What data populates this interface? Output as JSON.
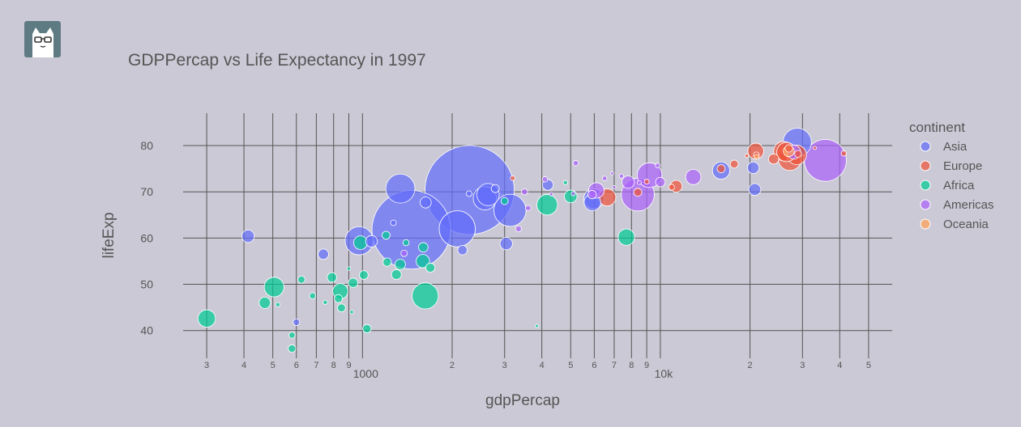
{
  "chart_data": {
    "type": "scatter",
    "title": "GDPPercap vs Life Expectancy in 1997",
    "xlabel": "gdpPercap",
    "ylabel": "lifeExp",
    "x_scale": "log",
    "xlim": [
      250,
      60000
    ],
    "ylim": [
      34,
      87
    ],
    "y_ticks": [
      40,
      50,
      60,
      70,
      80
    ],
    "x_minor_ticks": [
      {
        "value": 300,
        "label": "3"
      },
      {
        "value": 400,
        "label": "4"
      },
      {
        "value": 500,
        "label": "5"
      },
      {
        "value": 600,
        "label": "6"
      },
      {
        "value": 700,
        "label": "7"
      },
      {
        "value": 800,
        "label": "8"
      },
      {
        "value": 900,
        "label": "9"
      },
      {
        "value": 2000,
        "label": "2"
      },
      {
        "value": 3000,
        "label": "3"
      },
      {
        "value": 4000,
        "label": "4"
      },
      {
        "value": 5000,
        "label": "5"
      },
      {
        "value": 6000,
        "label": "6"
      },
      {
        "value": 7000,
        "label": "7"
      },
      {
        "value": 8000,
        "label": "8"
      },
      {
        "value": 9000,
        "label": "9"
      },
      {
        "value": 20000,
        "label": "2"
      },
      {
        "value": 30000,
        "label": "3"
      },
      {
        "value": 40000,
        "label": "4"
      },
      {
        "value": 50000,
        "label": "5"
      }
    ],
    "x_major_ticks": [
      {
        "value": 1000,
        "label": "1000"
      },
      {
        "value": 10000,
        "label": "10k"
      }
    ],
    "legend": {
      "title": "continent",
      "position": "right"
    },
    "bubble_size": "population",
    "grid": true,
    "series": [
      {
        "name": "Asia",
        "color": "#636efa",
        "points": [
          [
            2289,
            70.4,
            1230
          ],
          [
            1459,
            61.8,
            959
          ],
          [
            2080,
            62.0,
            202
          ],
          [
            413,
            60.4,
            24
          ],
          [
            1340,
            70.7,
            131
          ],
          [
            3127,
            66.0,
            160
          ],
          [
            2576,
            68.6,
            84
          ],
          [
            975,
            59.4,
            123
          ],
          [
            2640,
            69.4,
            77
          ],
          [
            1072,
            59.3,
            21
          ],
          [
            5914,
            67.7,
            43
          ],
          [
            3038,
            58.8,
            24
          ],
          [
            5980,
            68.5,
            63
          ],
          [
            2166,
            57.4,
            14
          ],
          [
            739,
            56.5,
            17
          ],
          [
            28800,
            80.7,
            125
          ],
          [
            15990,
            74.6,
            46
          ],
          [
            20750,
            70.5,
            22
          ],
          [
            1630,
            67.7,
            19
          ],
          [
            4190,
            71.5,
            18
          ],
          [
            20500,
            75.2,
            21
          ],
          [
            2790,
            70.7,
            10
          ],
          [
            1270,
            63.3,
            5
          ],
          [
            600,
            41.8,
            7
          ],
          [
            2280,
            69.6,
            5
          ]
        ]
      },
      {
        "name": "Europe",
        "color": "#ef553b",
        "points": [
          [
            27200,
            77.1,
            82
          ],
          [
            26500,
            78.6,
            58
          ],
          [
            25900,
            78.8,
            59
          ],
          [
            20900,
            78.8,
            39
          ],
          [
            17700,
            76.0,
            10
          ],
          [
            28700,
            78.0,
            59
          ],
          [
            24000,
            77.1,
            16
          ],
          [
            29000,
            78.2,
            7.5
          ],
          [
            21000,
            78.0,
            5.1
          ],
          [
            27000,
            79.4,
            8.9
          ],
          [
            6630,
            68.8,
            46
          ],
          [
            11300,
            71.2,
            22
          ],
          [
            9000,
            72.2,
            3.8
          ],
          [
            16000,
            75.0,
            10
          ],
          [
            10900,
            71.0,
            5.4
          ],
          [
            3193,
            72.95,
            3.4
          ],
          [
            19500,
            77.8,
            2.1
          ],
          [
            41300,
            78.3,
            4.4
          ],
          [
            8400,
            69.9,
            10
          ],
          [
            33000,
            79.5,
            0.3
          ]
        ]
      },
      {
        "name": "Africa",
        "color": "#00cc96",
        "points": [
          [
            1624,
            47.5,
            106
          ],
          [
            7689,
            60.2,
            42
          ],
          [
            4169,
            67.2,
            66
          ],
          [
            505,
            49.4,
            60
          ],
          [
            843,
            48.5,
            36
          ],
          [
            985,
            59.0,
            29
          ],
          [
            1595,
            55.0,
            28
          ],
          [
            1339,
            54.3,
            17
          ],
          [
            300,
            42.6,
            47
          ],
          [
            930,
            50.3,
            14
          ],
          [
            5000,
            69.0,
            25
          ],
          [
            1690,
            53.6,
            13
          ],
          [
            790,
            51.5,
            14
          ],
          [
            470,
            46.0,
            20
          ],
          [
            624,
            51.0,
            8
          ],
          [
            1210,
            54.8,
            11
          ],
          [
            1200,
            60.6,
            10
          ],
          [
            580,
            39.0,
            6
          ],
          [
            1035,
            40.4,
            11
          ],
          [
            580,
            36.1,
            9
          ],
          [
            3000,
            68.0,
            8
          ],
          [
            1600,
            58.0,
            14
          ],
          [
            830,
            46.9,
            10
          ],
          [
            1300,
            52.1,
            15
          ],
          [
            4800,
            72.0,
            3
          ],
          [
            680,
            47.5,
            6
          ],
          [
            850,
            44.9,
            10
          ],
          [
            1010,
            52.0,
            12
          ],
          [
            920,
            44.0,
            2
          ],
          [
            900,
            53.4,
            2
          ],
          [
            3850,
            41.0,
            1.5
          ],
          [
            520,
            45.6,
            3
          ],
          [
            750,
            46.1,
            3
          ],
          [
            1400,
            59.0,
            6
          ]
        ]
      },
      {
        "name": "Americas",
        "color": "#ab63fa",
        "points": [
          [
            35800,
            76.8,
            272
          ],
          [
            9200,
            73.6,
            95
          ],
          [
            8400,
            69.4,
            168
          ],
          [
            6100,
            70.3,
            37
          ],
          [
            12900,
            73.2,
            36
          ],
          [
            10000,
            72.1,
            14
          ],
          [
            7800,
            72.1,
            24
          ],
          [
            3340,
            62.0,
            5.4
          ],
          [
            1380,
            56.7,
            6.5
          ],
          [
            5900,
            69.4,
            11
          ],
          [
            4300,
            69.5,
            2
          ],
          [
            3500,
            70.0,
            6
          ],
          [
            9800,
            75.7,
            3.5
          ],
          [
            7400,
            73.4,
            3
          ],
          [
            5100,
            69.6,
            2.7
          ],
          [
            6500,
            72.9,
            3.3
          ],
          [
            4100,
            72.7,
            4.5
          ],
          [
            6900,
            74.0,
            0.9
          ],
          [
            8500,
            72.0,
            2.5
          ],
          [
            5200,
            76.2,
            4.5
          ],
          [
            3600,
            66.5,
            4.7
          ],
          [
            7000,
            71.0,
            1.3
          ],
          [
            28000,
            78.6,
            30
          ]
        ]
      },
      {
        "name": "Oceania",
        "color": "#ffa15a",
        "points": [
          [
            26998,
            78.8,
            18.6
          ],
          [
            21050,
            77.6,
            3.7
          ]
        ]
      }
    ]
  }
}
